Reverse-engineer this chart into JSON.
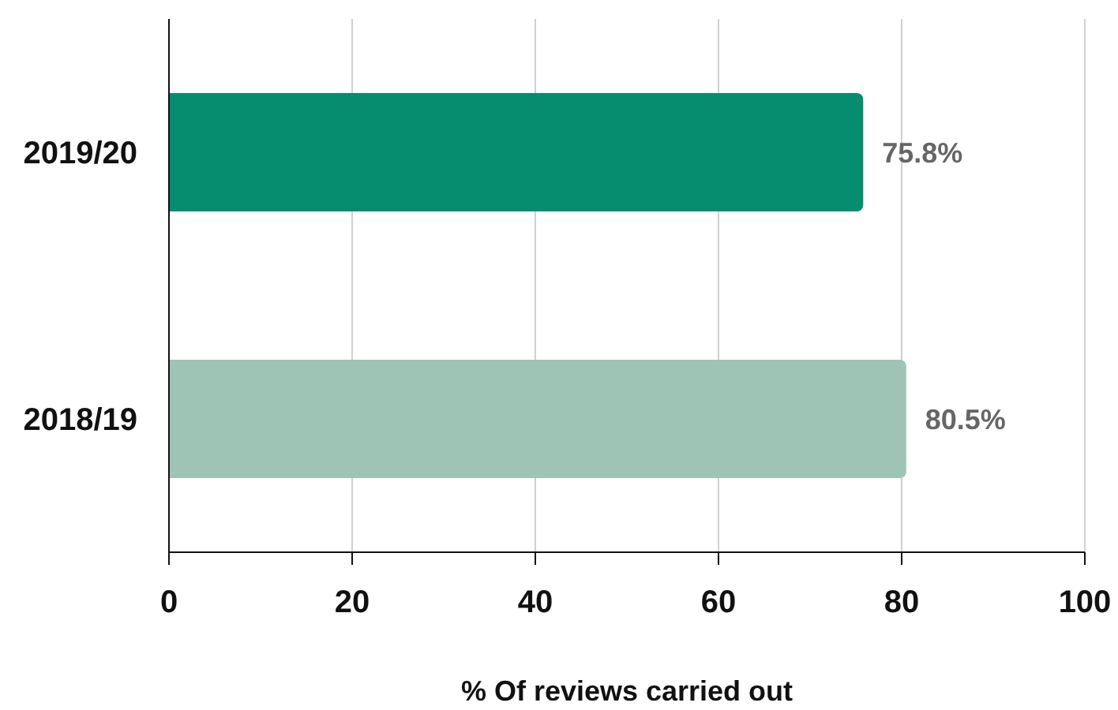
{
  "chart_data": {
    "type": "bar",
    "orientation": "horizontal",
    "xlabel": "% Of reviews carried out",
    "categories": [
      "2019/20",
      "2018/19"
    ],
    "values": [
      75.8,
      80.5
    ],
    "colors": [
      "#068c6e",
      "#9ec4b6"
    ],
    "value_labels": [
      "75.8%",
      "80.5%"
    ],
    "xlim": [
      0,
      100
    ],
    "xticks": [
      0,
      20,
      40,
      60,
      80,
      100
    ],
    "grid": "x"
  }
}
